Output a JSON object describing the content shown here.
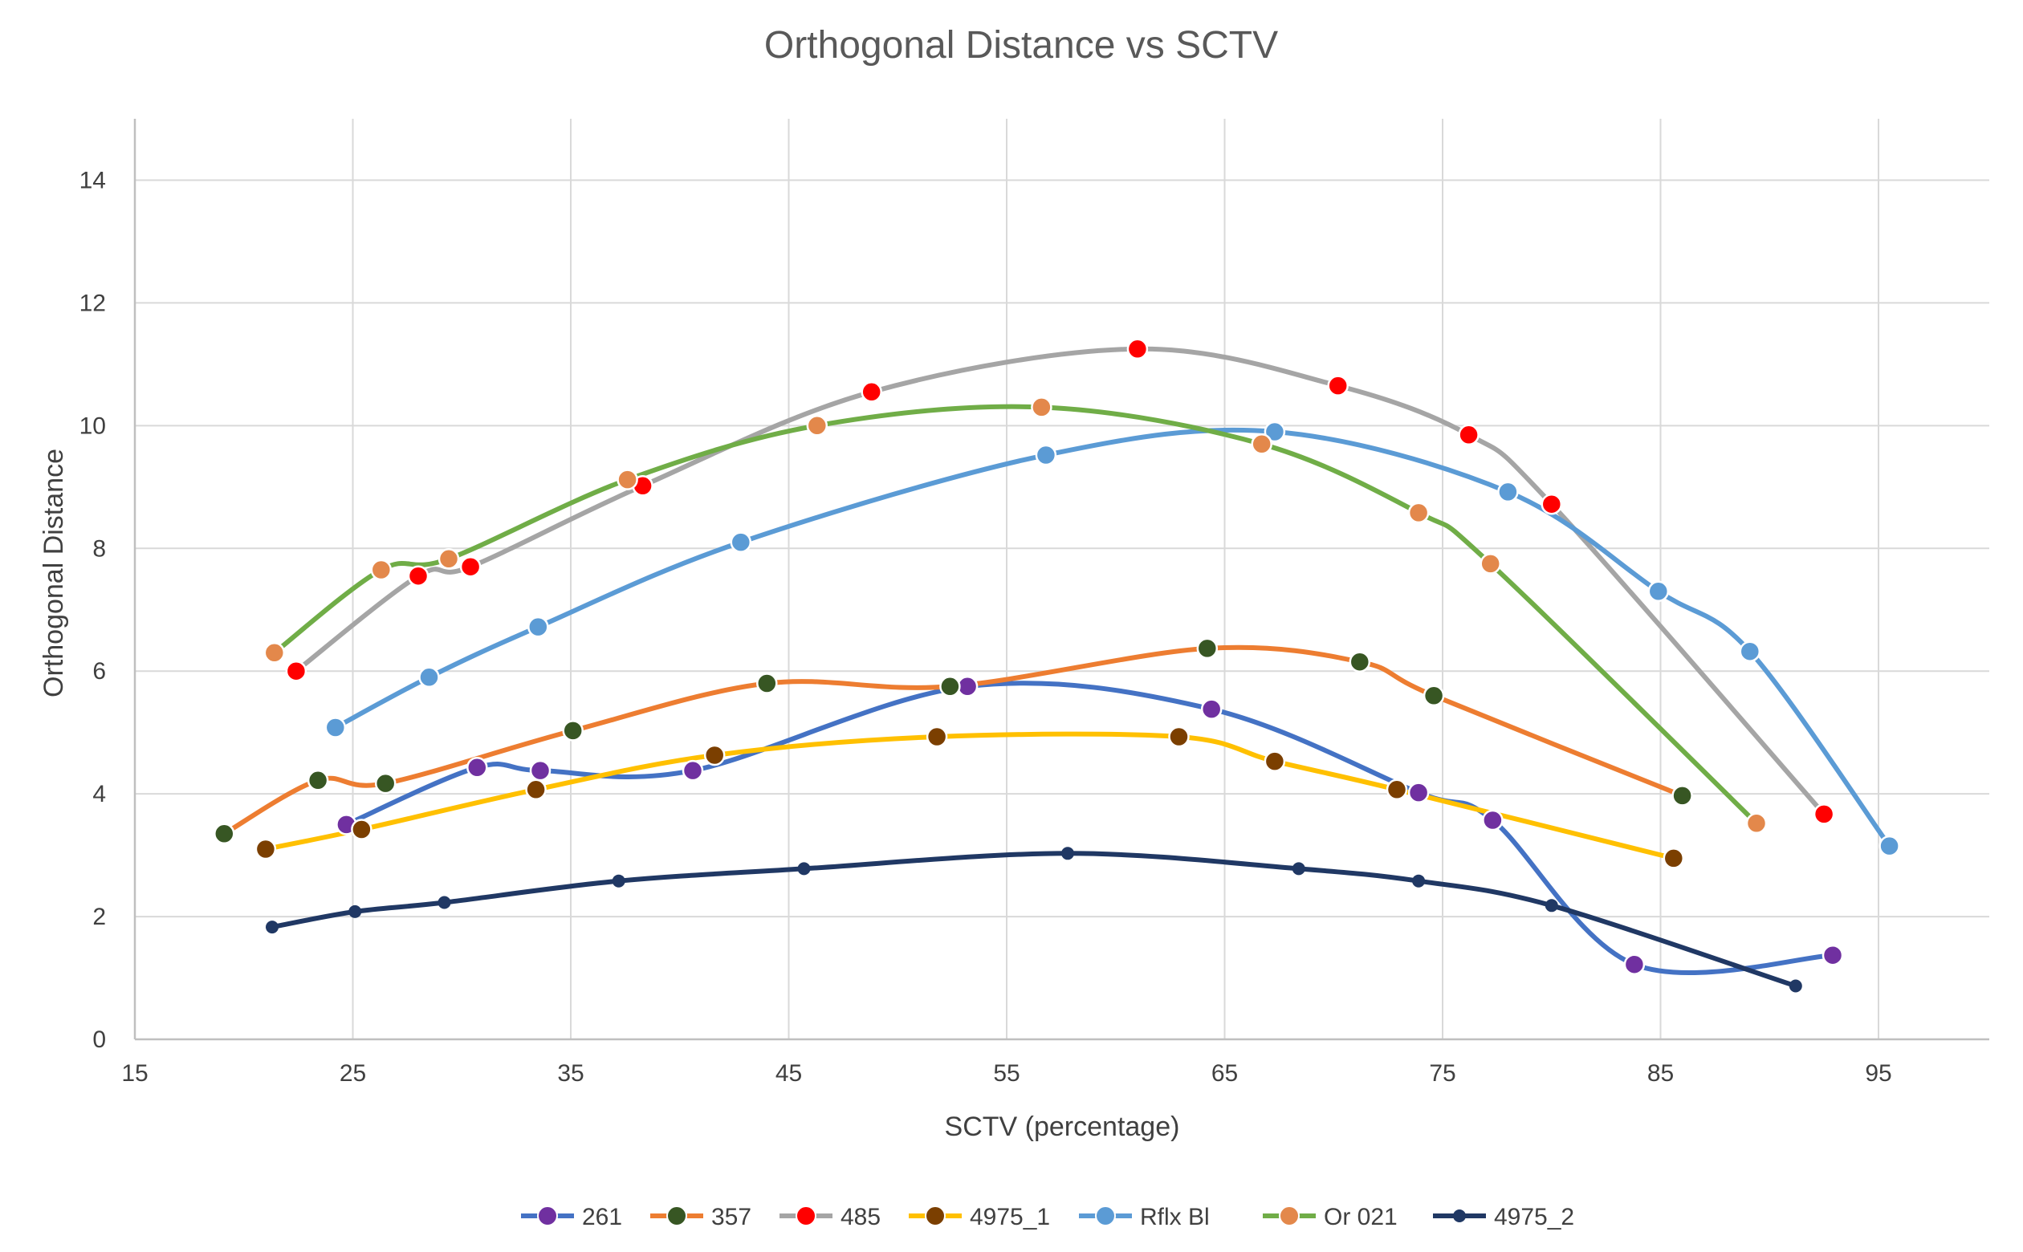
{
  "chart_data": {
    "type": "line",
    "title": "Orthogonal Distance vs SCTV",
    "xlabel": "SCTV (percentage)",
    "ylabel": "Orthogonal Distance",
    "xlim": [
      15,
      100
    ],
    "ylim": [
      0,
      15
    ],
    "xticks": [
      15,
      25,
      35,
      45,
      55,
      65,
      75,
      85,
      95
    ],
    "yticks": [
      0,
      2,
      4,
      6,
      8,
      10,
      12,
      14
    ],
    "grid": true,
    "smooth": true,
    "legend_position": "bottom",
    "series": [
      {
        "name": "261",
        "line_color": "#4472C4",
        "marker_color": "#7030A0",
        "marker": "large",
        "points": [
          [
            24.7,
            3.5
          ],
          [
            30.7,
            4.43
          ],
          [
            33.6,
            4.38
          ],
          [
            40.6,
            4.38
          ],
          [
            53.2,
            5.75
          ],
          [
            64.4,
            5.38
          ],
          [
            73.9,
            4.02
          ],
          [
            77.3,
            3.57
          ],
          [
            83.8,
            1.22
          ],
          [
            92.9,
            1.37
          ]
        ]
      },
      {
        "name": "357",
        "line_color": "#ED7D31",
        "marker_color": "#375623",
        "marker": "large",
        "points": [
          [
            19.1,
            3.35
          ],
          [
            23.4,
            4.22
          ],
          [
            26.5,
            4.17
          ],
          [
            35.1,
            5.03
          ],
          [
            44.0,
            5.8
          ],
          [
            52.4,
            5.75
          ],
          [
            64.2,
            6.37
          ],
          [
            71.2,
            6.15
          ],
          [
            74.6,
            5.6
          ],
          [
            86.0,
            3.97
          ]
        ]
      },
      {
        "name": "485",
        "line_color": "#A5A5A5",
        "marker_color": "#FF0000",
        "marker": "large",
        "points": [
          [
            22.4,
            6.0
          ],
          [
            28.0,
            7.55
          ],
          [
            30.4,
            7.7
          ],
          [
            38.3,
            9.02
          ],
          [
            48.8,
            10.55
          ],
          [
            61.0,
            11.25
          ],
          [
            70.2,
            10.65
          ],
          [
            76.2,
            9.85
          ],
          [
            80.0,
            8.72
          ],
          [
            92.5,
            3.67
          ]
        ]
      },
      {
        "name": "4975_1",
        "line_color": "#FFC000",
        "marker_color": "#7B3F00",
        "marker": "large",
        "points": [
          [
            21.0,
            3.1
          ],
          [
            25.4,
            3.42
          ],
          [
            33.4,
            4.07
          ],
          [
            41.6,
            4.63
          ],
          [
            51.8,
            4.93
          ],
          [
            62.9,
            4.93
          ],
          [
            67.3,
            4.53
          ],
          [
            72.9,
            4.07
          ],
          [
            85.6,
            2.95
          ]
        ]
      },
      {
        "name": "Rflx Bl",
        "line_color": "#5B9BD5",
        "marker_color": "#5B9BD5",
        "marker": "large",
        "points": [
          [
            24.2,
            5.08
          ],
          [
            28.5,
            5.9
          ],
          [
            33.5,
            6.72
          ],
          [
            42.8,
            8.1
          ],
          [
            56.8,
            9.52
          ],
          [
            67.3,
            9.9
          ],
          [
            78.0,
            8.92
          ],
          [
            84.9,
            7.3
          ],
          [
            89.1,
            6.32
          ],
          [
            95.5,
            3.15
          ]
        ]
      },
      {
        "name": "Or 021",
        "line_color": "#70AD47",
        "marker_color": "#E3884B",
        "marker": "large",
        "points": [
          [
            21.4,
            6.3
          ],
          [
            26.3,
            7.65
          ],
          [
            29.4,
            7.83
          ],
          [
            37.6,
            9.12
          ],
          [
            46.3,
            10.0
          ],
          [
            56.6,
            10.3
          ],
          [
            66.7,
            9.7
          ],
          [
            73.9,
            8.58
          ],
          [
            77.2,
            7.75
          ],
          [
            89.4,
            3.52
          ]
        ]
      },
      {
        "name": "4975_2",
        "line_color": "#203864",
        "marker_color": "#203864",
        "marker": "small",
        "points": [
          [
            21.3,
            1.83
          ],
          [
            25.1,
            2.08
          ],
          [
            29.2,
            2.23
          ],
          [
            37.2,
            2.58
          ],
          [
            45.7,
            2.78
          ],
          [
            57.8,
            3.03
          ],
          [
            68.4,
            2.78
          ],
          [
            73.9,
            2.58
          ],
          [
            80.0,
            2.18
          ],
          [
            91.2,
            0.87
          ]
        ]
      }
    ]
  }
}
